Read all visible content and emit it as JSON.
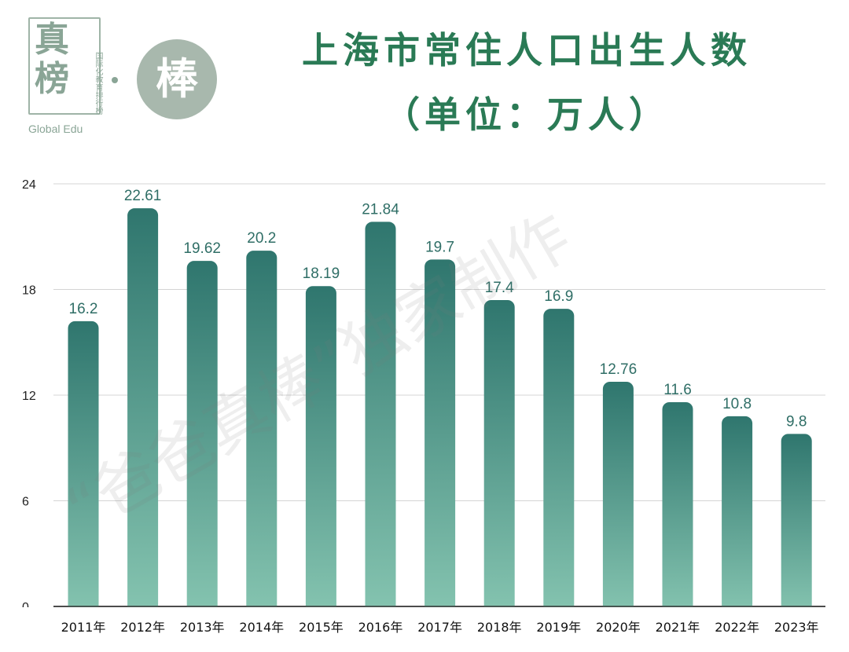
{
  "logo": {
    "char_top": "真",
    "char_bottom": "榜",
    "vertical_text": "国际化教育排行榜",
    "english": "Global Edu",
    "circle_char": "棒"
  },
  "watermark": "“爸爸真棒”独家制作",
  "chart_data": {
    "type": "bar",
    "title": "上海市常住人口出生人数",
    "subtitle": "（单位：万人）",
    "categories": [
      "2011年",
      "2012年",
      "2013年",
      "2014年",
      "2015年",
      "2016年",
      "2017年",
      "2018年",
      "2019年",
      "2020年",
      "2021年",
      "2022年",
      "2023年"
    ],
    "values": [
      16.2,
      22.61,
      19.62,
      20.2,
      18.19,
      21.84,
      19.7,
      17.4,
      16.9,
      12.76,
      11.6,
      10.8,
      9.8
    ],
    "value_labels": [
      "16.2",
      "22.61",
      "19.62",
      "20.2",
      "18.19",
      "21.84",
      "19.7",
      "17.4",
      "16.9",
      "12.76",
      "11.6",
      "10.8",
      "9.8"
    ],
    "ylim": [
      0,
      24
    ],
    "yticks": [
      0,
      6,
      12,
      18,
      24
    ],
    "grid": true,
    "colors": {
      "bar_top": "#2f766e",
      "bar_bottom": "#85c4b0",
      "label": "#2f6e66",
      "title": "#2a7a55"
    }
  }
}
